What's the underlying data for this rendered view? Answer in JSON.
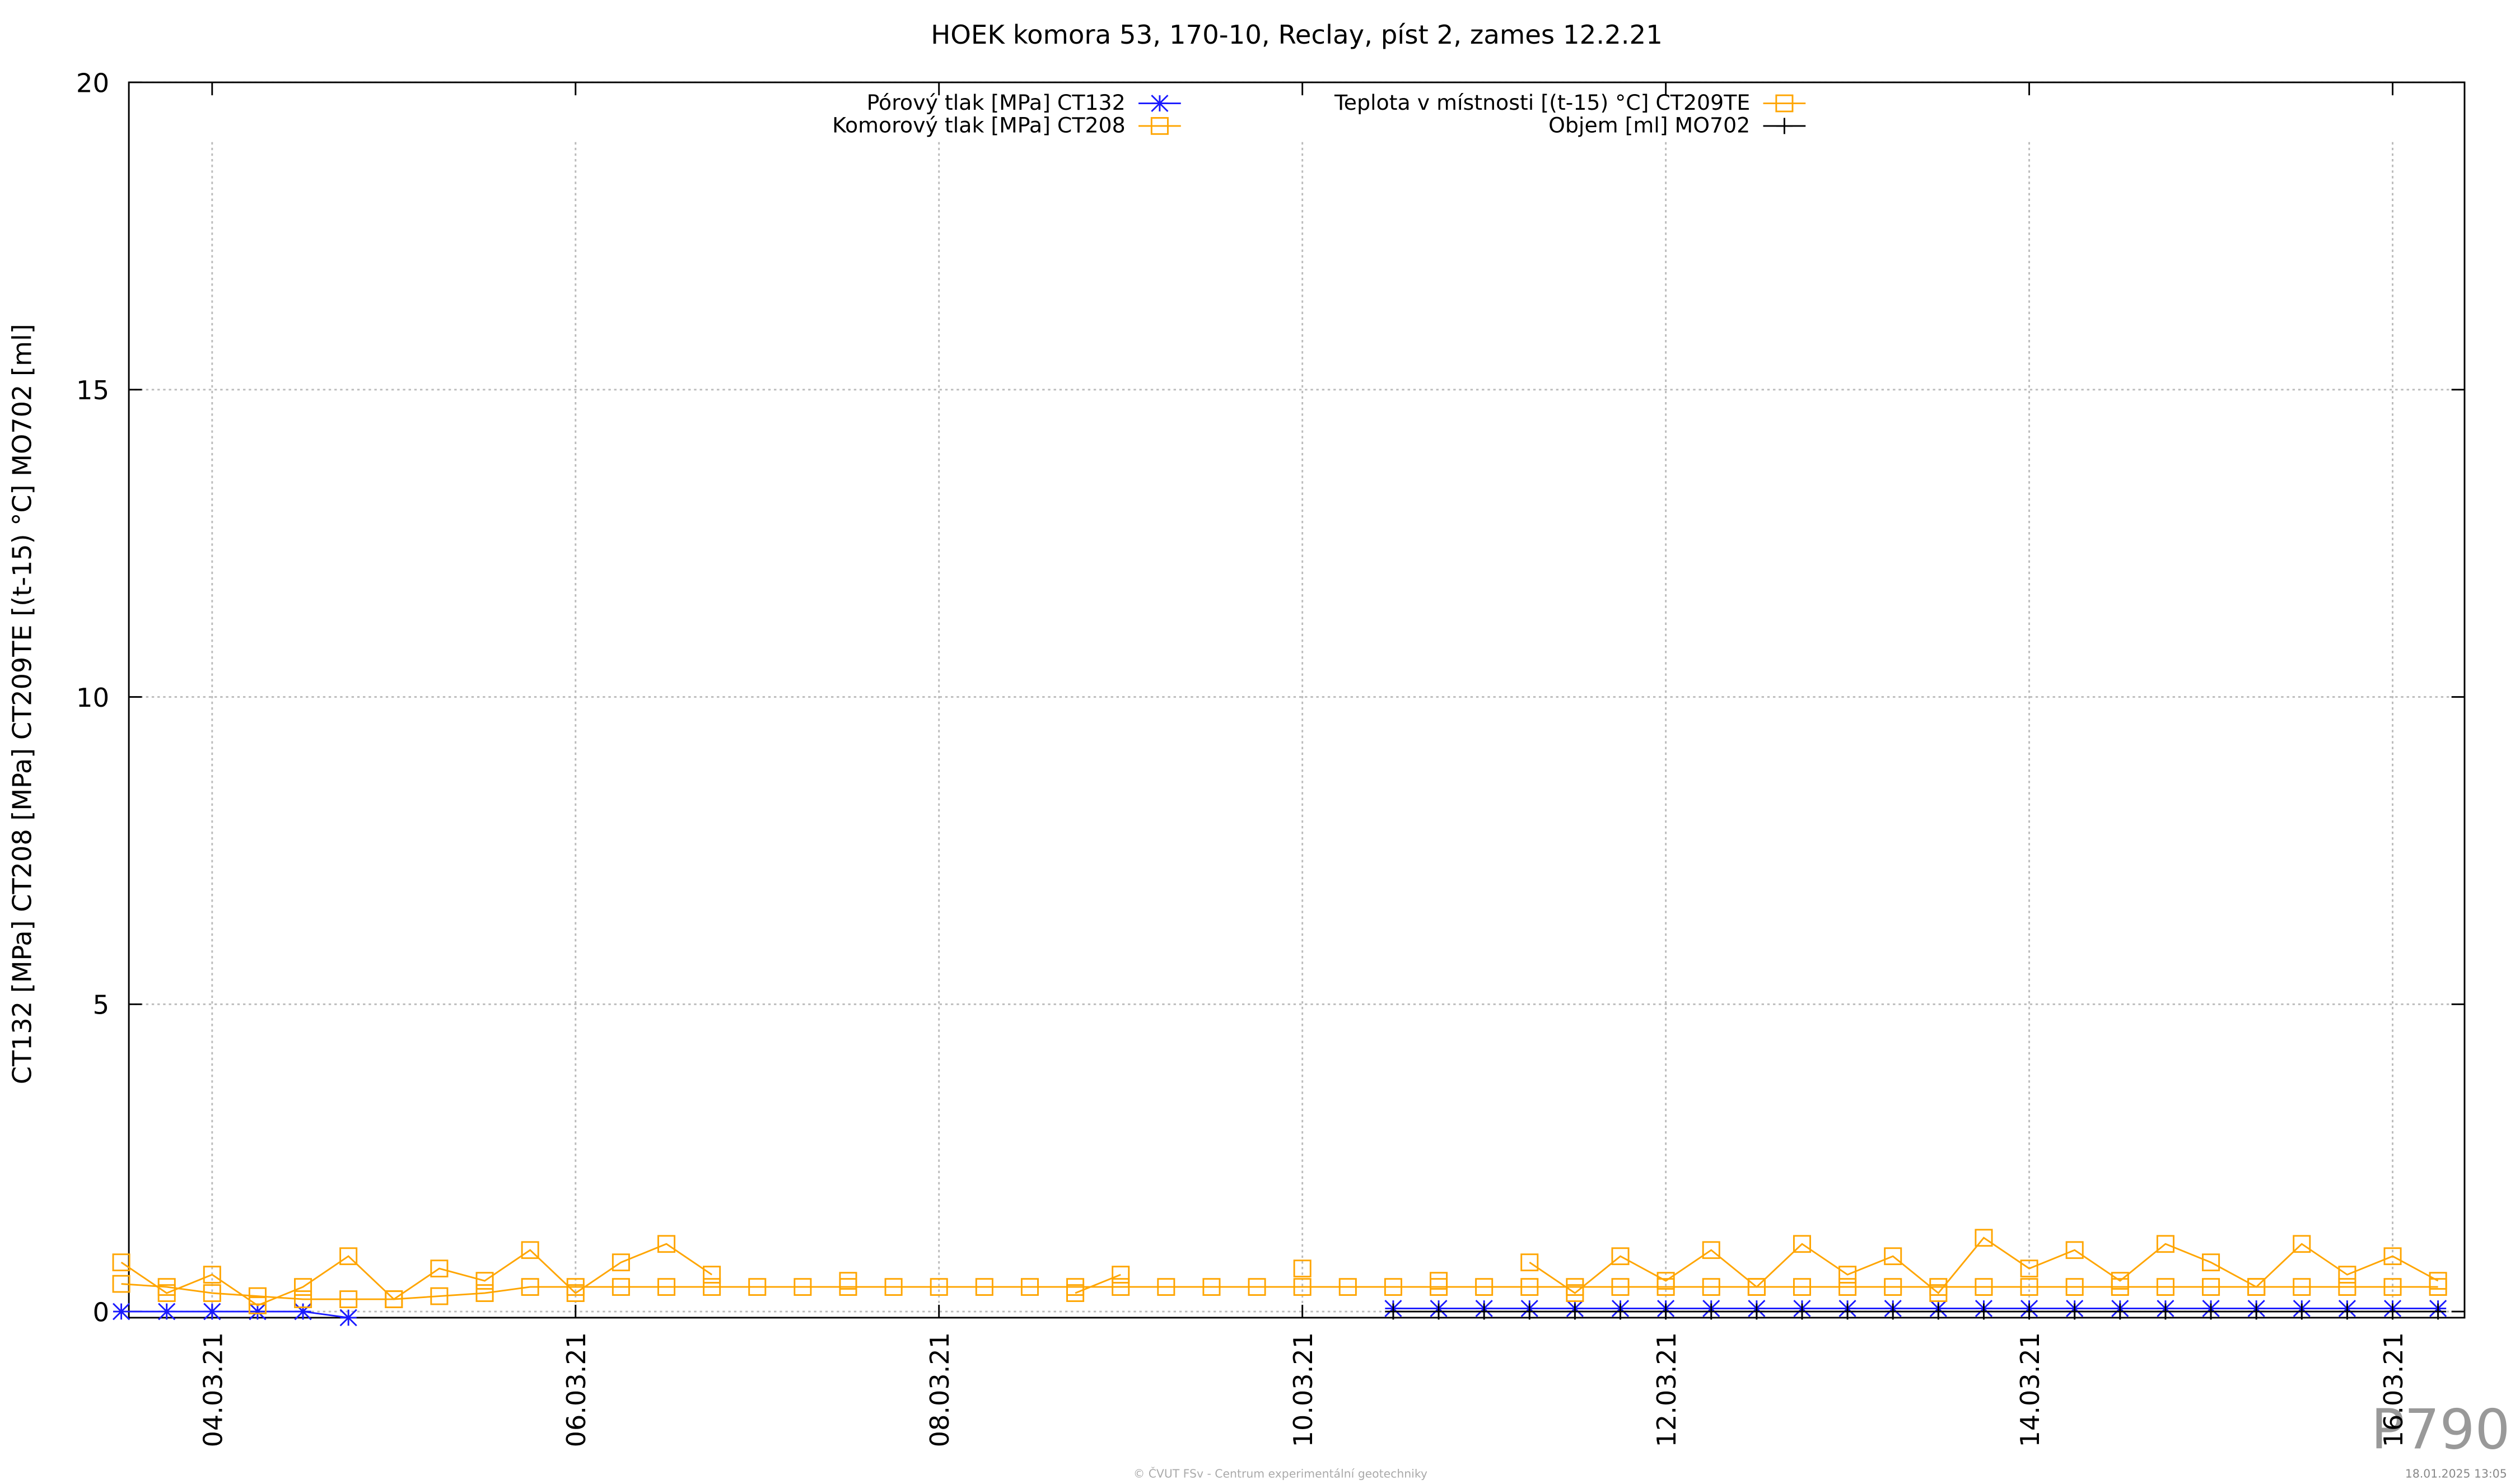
{
  "chart_data": {
    "type": "line",
    "title": "HOEK komora 53, 170-10, Reclay, píst 2, zames 12.2.21",
    "y_label": "CT132 [MPa] CT208 [MPa] CT209TE [(t-15) °C] MO702 [ml]",
    "footer": "© ČVUT FSv - Centrum experimentální geotechniky",
    "timestamp": "18.01.2025 13:05",
    "watermark": "P790",
    "grid": true,
    "x": [
      "2021-03-03T12:00",
      "2021-03-03T18:00",
      "2021-03-04T00:00",
      "2021-03-04T06:00",
      "2021-03-04T12:00",
      "2021-03-04T18:00",
      "2021-03-05T00:00",
      "2021-03-05T06:00",
      "2021-03-05T12:00",
      "2021-03-05T18:00",
      "2021-03-06T00:00",
      "2021-03-06T06:00",
      "2021-03-06T12:00",
      "2021-03-06T18:00",
      "2021-03-07T00:00",
      "2021-03-07T06:00",
      "2021-03-07T12:00",
      "2021-03-07T18:00",
      "2021-03-08T00:00",
      "2021-03-08T06:00",
      "2021-03-08T12:00",
      "2021-03-08T18:00",
      "2021-03-09T00:00",
      "2021-03-09T06:00",
      "2021-03-09T12:00",
      "2021-03-09T18:00",
      "2021-03-10T00:00",
      "2021-03-10T06:00",
      "2021-03-10T12:00",
      "2021-03-10T18:00",
      "2021-03-11T00:00",
      "2021-03-11T06:00",
      "2021-03-11T12:00",
      "2021-03-11T18:00",
      "2021-03-12T00:00",
      "2021-03-12T06:00",
      "2021-03-12T12:00",
      "2021-03-12T18:00",
      "2021-03-13T00:00",
      "2021-03-13T06:00",
      "2021-03-13T12:00",
      "2021-03-13T18:00",
      "2021-03-14T00:00",
      "2021-03-14T06:00",
      "2021-03-14T12:00",
      "2021-03-14T18:00",
      "2021-03-15T00:00",
      "2021-03-15T06:00",
      "2021-03-15T12:00",
      "2021-03-15T18:00",
      "2021-03-16T00:00",
      "2021-03-16T06:00"
    ],
    "xlim": [
      "2021-03-03T13:00",
      "2021-03-16T09:30"
    ],
    "xticks": [
      {
        "value": "2021-03-04T00:00",
        "label": "04.03.21"
      },
      {
        "value": "2021-03-06T00:00",
        "label": "06.03.21"
      },
      {
        "value": "2021-03-08T00:00",
        "label": "08.03.21"
      },
      {
        "value": "2021-03-10T00:00",
        "label": "10.03.21"
      },
      {
        "value": "2021-03-12T00:00",
        "label": "12.03.21"
      },
      {
        "value": "2021-03-14T00:00",
        "label": "14.03.21"
      },
      {
        "value": "2021-03-16T00:00",
        "label": "16.03.21"
      }
    ],
    "ylim": [
      -0.1,
      20
    ],
    "yticks": [
      0,
      5,
      10,
      15,
      20
    ],
    "series": [
      {
        "name": "Pórový tlak [MPa] CT132",
        "color": "#1a1aff",
        "marker": "star",
        "values": [
          0,
          0,
          0,
          0,
          0,
          -0.1,
          null,
          null,
          null,
          null,
          null,
          null,
          null,
          null,
          null,
          null,
          null,
          null,
          null,
          null,
          null,
          null,
          null,
          null,
          null,
          null,
          null,
          null,
          0.05,
          0.05,
          0.05,
          0.05,
          0.05,
          0.05,
          0.05,
          0.05,
          0.05,
          0.05,
          0.05,
          0.05,
          0.05,
          0.05,
          0.05,
          0.05,
          0.05,
          0.05,
          0.05,
          0.05,
          0.05,
          0.05,
          0.05,
          0.05
        ]
      },
      {
        "name": "Komorový tlak [MPa] CT208",
        "color": "#ffa500",
        "marker": "square",
        "values": [
          0.45,
          0.4,
          0.3,
          0.25,
          0.2,
          0.2,
          0.2,
          0.25,
          0.3,
          0.4,
          0.4,
          0.4,
          0.4,
          0.4,
          0.4,
          0.4,
          0.4,
          0.4,
          0.4,
          0.4,
          0.4,
          0.4,
          0.4,
          0.4,
          0.4,
          0.4,
          0.4,
          0.4,
          0.4,
          0.4,
          0.4,
          0.4,
          0.4,
          0.4,
          0.4,
          0.4,
          0.4,
          0.4,
          0.4,
          0.4,
          0.4,
          0.4,
          0.4,
          0.4,
          0.4,
          0.4,
          0.4,
          0.4,
          0.4,
          0.4,
          0.4,
          0.4
        ]
      },
      {
        "name": "Teplota v místnosti [(t-15) °C] CT209TE",
        "color": "#ffa500",
        "marker": "square",
        "values": [
          0.8,
          0.3,
          0.6,
          0.1,
          0.4,
          0.9,
          0.2,
          0.7,
          0.5,
          1.0,
          0.3,
          0.8,
          1.1,
          0.6,
          null,
          null,
          0.5,
          null,
          null,
          null,
          null,
          0.3,
          0.6,
          null,
          null,
          null,
          0.7,
          null,
          null,
          0.5,
          null,
          0.8,
          0.3,
          0.9,
          0.5,
          1.0,
          0.4,
          1.1,
          0.6,
          0.9,
          0.3,
          1.2,
          0.7,
          1.0,
          0.5,
          1.1,
          0.8,
          0.4,
          1.1,
          0.6,
          0.9,
          0.5
        ]
      },
      {
        "name": "Objem [ml] MO702",
        "color": "#000000",
        "marker": "plus",
        "values": [
          null,
          null,
          null,
          null,
          null,
          null,
          null,
          null,
          null,
          null,
          null,
          null,
          null,
          null,
          null,
          null,
          null,
          null,
          null,
          null,
          null,
          null,
          null,
          null,
          null,
          null,
          null,
          null,
          0,
          0,
          0,
          0,
          0,
          0,
          0,
          0,
          0,
          0,
          0,
          0,
          0,
          0,
          0,
          0,
          0,
          0,
          0,
          0,
          0,
          0,
          0,
          0
        ]
      }
    ]
  }
}
